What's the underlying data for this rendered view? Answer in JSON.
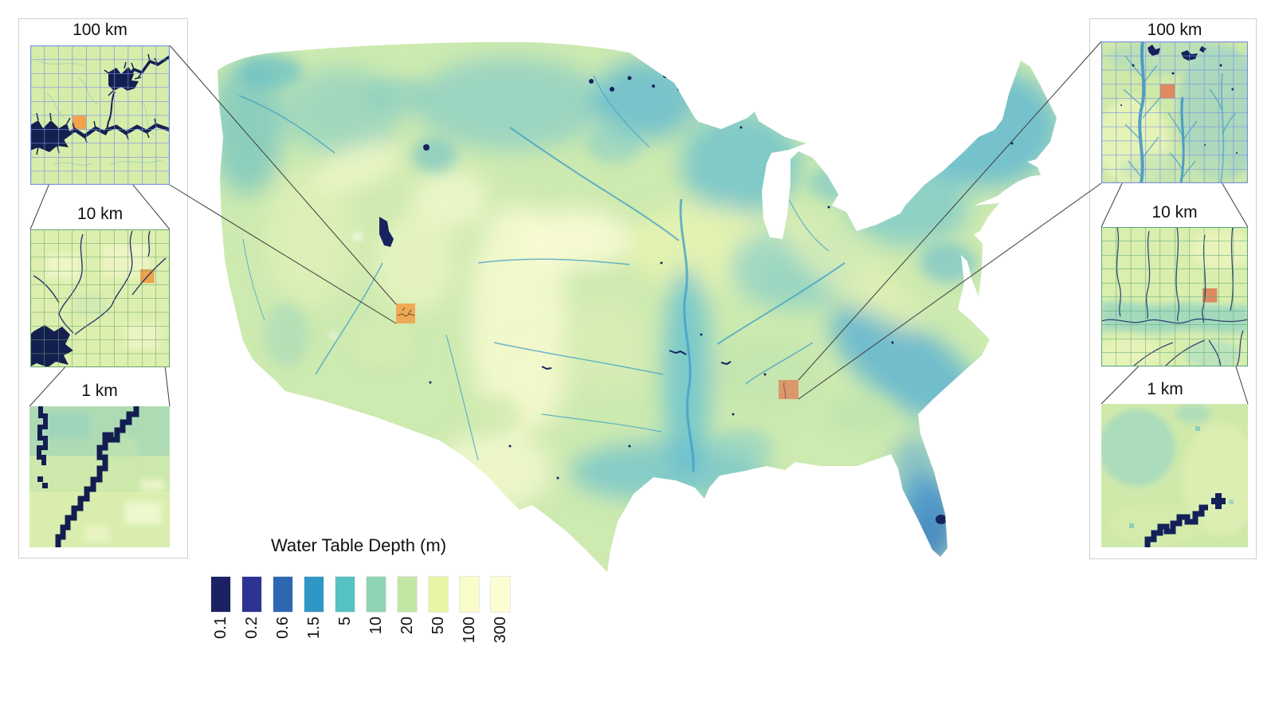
{
  "legend": {
    "title": "Water Table Depth (m)",
    "entries": [
      {
        "label": "0.1",
        "color": "#1b2163"
      },
      {
        "label": "0.2",
        "color": "#2e3292"
      },
      {
        "label": "0.6",
        "color": "#2e67b1"
      },
      {
        "label": "1.5",
        "color": "#2e97c6"
      },
      {
        "label": "5",
        "color": "#55c1c2"
      },
      {
        "label": "10",
        "color": "#8fd4b5"
      },
      {
        "label": "20",
        "color": "#c2e6a4"
      },
      {
        "label": "50",
        "color": "#e7f5a4"
      },
      {
        "label": "100",
        "color": "#fafcc8"
      },
      {
        "label": "300",
        "color": "#fdfdd3"
      }
    ]
  },
  "insets": {
    "left": {
      "items": [
        {
          "title": "100 km"
        },
        {
          "title": "10 km"
        },
        {
          "title": "1 km"
        }
      ]
    },
    "right": {
      "items": [
        {
          "title": "100 km"
        },
        {
          "title": "10 km"
        },
        {
          "title": "1 km"
        }
      ]
    }
  },
  "map": {
    "highlight_color_west": "#efa44c",
    "highlight_color_east": "#dd8a60",
    "water_navy": "#13205a",
    "grid_blue": "#7b8fe6",
    "grid_green": "#5fa077",
    "connector_color": "#3c3c3c"
  }
}
